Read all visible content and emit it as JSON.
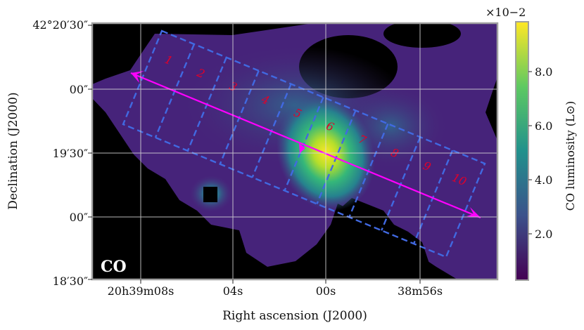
{
  "figure": {
    "panel_label": "CO",
    "xlabel": "Right ascension (J2000)",
    "ylabel": "Declination (J2000)",
    "x_ticks": [
      "20h39m08s",
      "04s",
      "00s",
      "38m56s"
    ],
    "y_ticks": [
      "42°20′30″",
      "00″",
      "19′30″",
      "00″",
      "18′30″"
    ],
    "colorbar": {
      "label": "CO luminosity (L⊙)",
      "scale_label": "×10−2",
      "ticks": [
        "8.0",
        "6.0",
        "4.0",
        "2.0"
      ],
      "colormap": "viridis",
      "colors": [
        "#440154",
        "#3b528b",
        "#21918c",
        "#5ec962",
        "#fde725"
      ]
    },
    "strip_labels": [
      "1",
      "2",
      "3",
      "4",
      "5",
      "6",
      "7",
      "8",
      "9",
      "10"
    ],
    "colors": {
      "background_mask": "#000000",
      "strips": "#4169e1",
      "strip_labels": "#e0002a",
      "arrow": "#ff00ff",
      "grid": "#d9d9d9",
      "frame": "#a0a0a0"
    }
  }
}
